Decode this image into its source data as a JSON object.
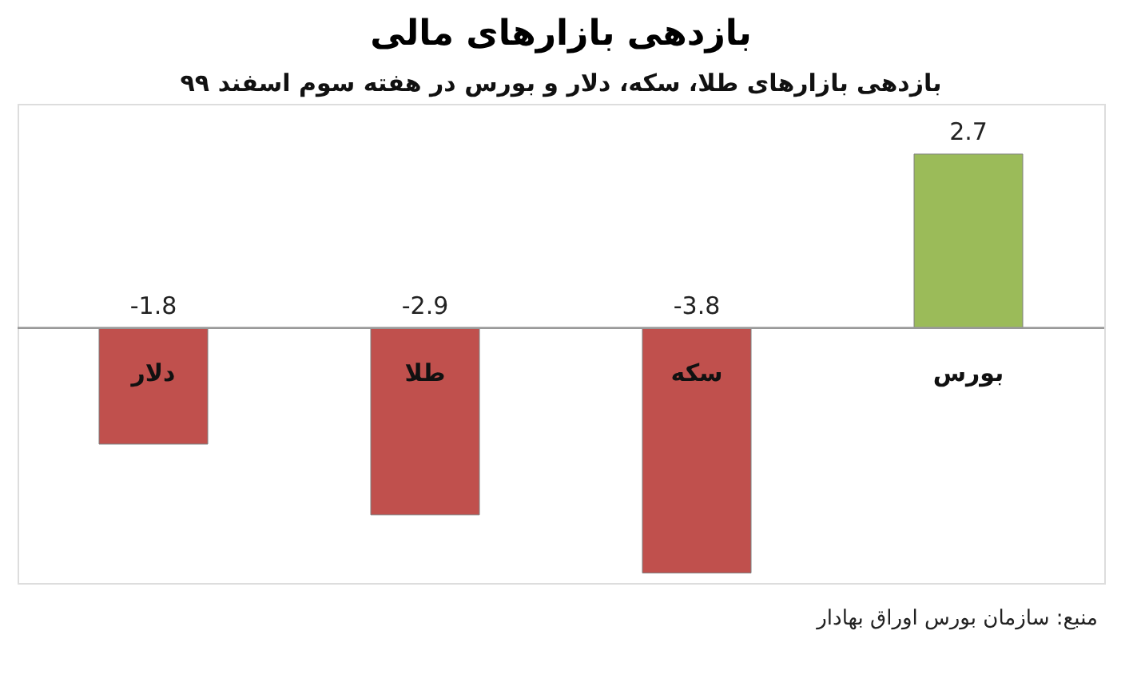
{
  "chart_data": {
    "type": "bar",
    "title": "بازدهی بازارهای مالی",
    "subtitle": "بازدهی بازارهای طلا، سکه، دلار و بورس در هفته سوم اسفند ۹۹",
    "categories": [
      "دلار",
      "طلا",
      "سکه",
      "بورس"
    ],
    "values": [
      -1.8,
      -2.9,
      -3.8,
      2.7
    ],
    "colors": [
      "#c0504d",
      "#c0504d",
      "#c0504d",
      "#9bbb59"
    ],
    "data_labels": true,
    "grid": false,
    "tick_labels": false,
    "annotations": [
      "منبع: سازمان بورس اوراق بهادار"
    ]
  }
}
